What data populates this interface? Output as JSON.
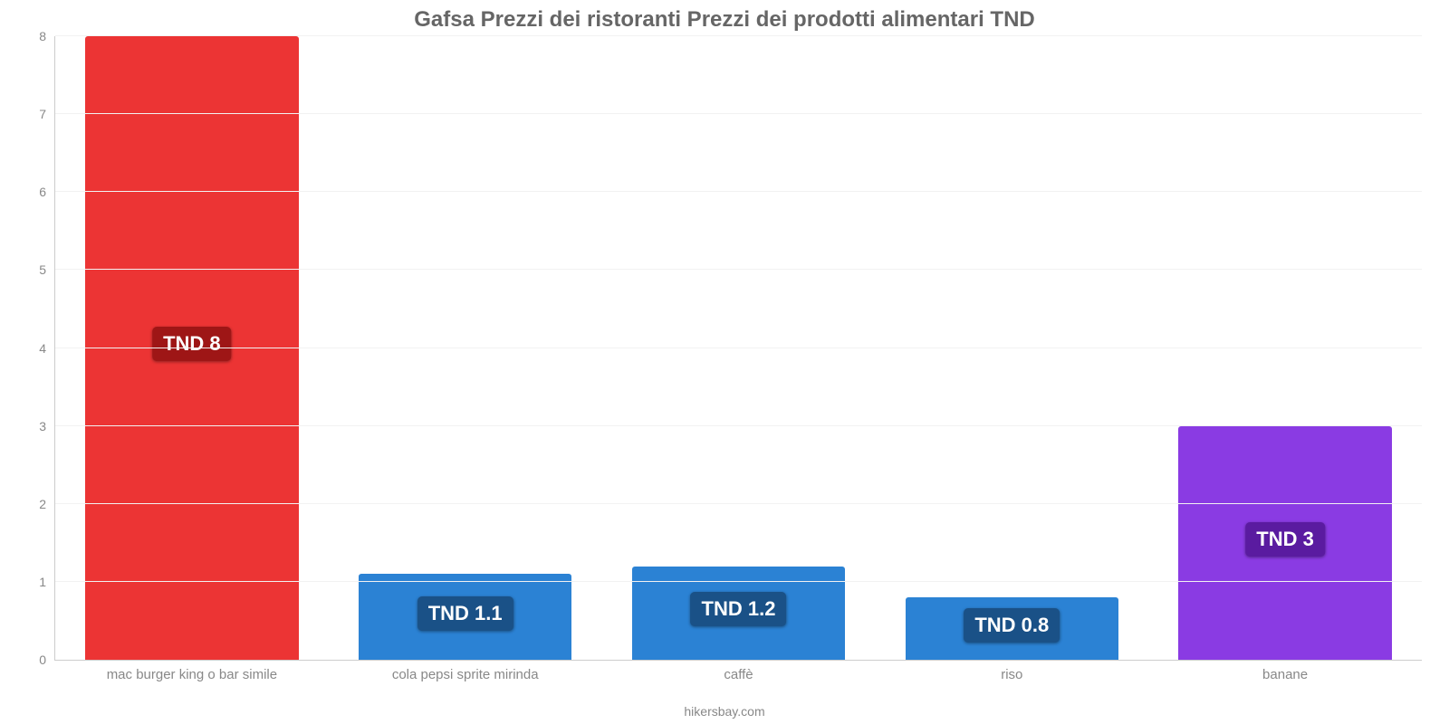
{
  "chart": {
    "type": "bar",
    "title": "Gafsa Prezzi dei ristoranti Prezzi dei prodotti alimentari TND",
    "title_color": "#666666",
    "title_fontsize": 24,
    "categories": [
      "mac burger king o bar simile",
      "cola pepsi sprite mirinda",
      "caffè",
      "riso",
      "banane"
    ],
    "values": [
      8,
      1.1,
      1.2,
      0.8,
      3
    ],
    "value_labels": [
      "TND 8",
      "TND 1.1",
      "TND 1.2",
      "TND 0.8",
      "TND 3"
    ],
    "bar_colors": [
      "#ec3434",
      "#2b82d4",
      "#2b82d4",
      "#2b82d4",
      "#8a3be3"
    ],
    "value_label_bg": [
      "#9e1616",
      "#1a5187",
      "#1a5187",
      "#1a5187",
      "#5a1ba0"
    ],
    "value_label_fontsize": 22,
    "ylim": [
      0,
      8
    ],
    "ytick_step": 1,
    "ytick_color": "#888888",
    "background_color": "#ffffff",
    "grid_color": "#f2f2f2",
    "axis_color": "#cccccc",
    "bar_width_pct": 78,
    "xtick_color": "#888888",
    "xtick_fontsize": 15
  },
  "attribution": {
    "text": "hikersbay.com",
    "color": "#888888"
  }
}
